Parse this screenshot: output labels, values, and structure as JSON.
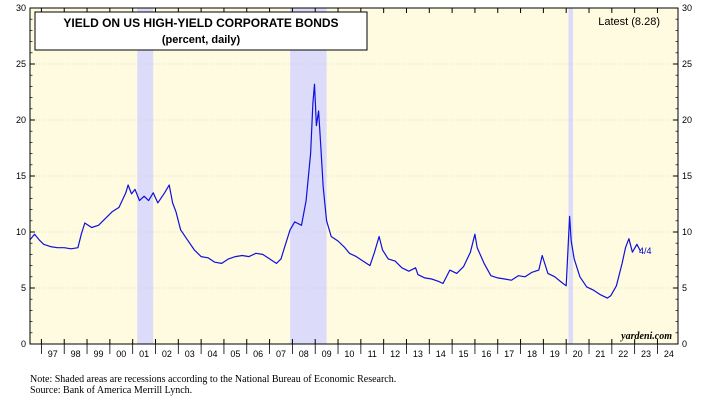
{
  "chart_data": {
    "type": "line",
    "title": "YIELD ON US HIGH-YIELD CORPORATE BONDS",
    "subtitle": "(percent, daily)",
    "latest_label": "Latest (8.28)",
    "end_annotation": "4/4",
    "watermark": "yardeni.com",
    "ylim": [
      0,
      30
    ],
    "y_ticks": [
      "0",
      "5",
      "10",
      "15",
      "20",
      "25",
      "30"
    ],
    "x_range": [
      1996.5,
      2024.9
    ],
    "x_tick_labels": [
      "97",
      "98",
      "99",
      "00",
      "01",
      "02",
      "03",
      "04",
      "05",
      "06",
      "07",
      "08",
      "09",
      "10",
      "11",
      "12",
      "13",
      "14",
      "15",
      "16",
      "17",
      "18",
      "19",
      "20",
      "21",
      "22",
      "23",
      "24"
    ],
    "recessions": [
      [
        2001.2,
        2001.9
      ],
      [
        2007.9,
        2009.5
      ],
      [
        2020.1,
        2020.3
      ]
    ],
    "series": [
      {
        "line_color": "#1010dd",
        "x": [
          1996.5,
          1996.7,
          1996.9,
          1997.1,
          1997.4,
          1997.7,
          1998.0,
          1998.3,
          1998.6,
          1998.75,
          1998.9,
          1999.2,
          1999.5,
          1999.8,
          2000.1,
          2000.4,
          2000.7,
          2000.8,
          2000.95,
          2001.1,
          2001.3,
          2001.5,
          2001.7,
          2001.9,
          2002.1,
          2002.4,
          2002.6,
          2002.75,
          2002.9,
          2003.1,
          2003.4,
          2003.7,
          2004.0,
          2004.3,
          2004.6,
          2004.9,
          2005.2,
          2005.5,
          2005.8,
          2006.1,
          2006.4,
          2006.7,
          2007.0,
          2007.3,
          2007.5,
          2007.7,
          2007.9,
          2008.1,
          2008.4,
          2008.6,
          2008.8,
          2008.9,
          2008.97,
          2009.05,
          2009.15,
          2009.25,
          2009.35,
          2009.5,
          2009.7,
          2010.0,
          2010.3,
          2010.5,
          2010.8,
          2011.1,
          2011.4,
          2011.6,
          2011.8,
          2011.95,
          2012.2,
          2012.5,
          2012.8,
          2013.1,
          2013.4,
          2013.5,
          2013.8,
          2014.1,
          2014.4,
          2014.6,
          2014.9,
          2015.2,
          2015.5,
          2015.8,
          2016.0,
          2016.1,
          2016.4,
          2016.7,
          2017.0,
          2017.3,
          2017.6,
          2017.9,
          2018.2,
          2018.5,
          2018.8,
          2018.95,
          2019.2,
          2019.5,
          2019.8,
          2020.0,
          2020.15,
          2020.22,
          2020.35,
          2020.6,
          2020.9,
          2021.2,
          2021.5,
          2021.8,
          2021.95,
          2022.2,
          2022.45,
          2022.6,
          2022.75,
          2022.9,
          2023.1,
          2023.25
        ],
        "y": [
          9.3,
          9.8,
          9.3,
          8.9,
          8.7,
          8.6,
          8.6,
          8.5,
          8.6,
          9.8,
          10.8,
          10.4,
          10.6,
          11.2,
          11.8,
          12.2,
          13.5,
          14.2,
          13.4,
          13.8,
          12.8,
          13.2,
          12.8,
          13.5,
          12.6,
          13.5,
          14.2,
          12.6,
          11.8,
          10.2,
          9.3,
          8.4,
          7.8,
          7.7,
          7.3,
          7.2,
          7.6,
          7.8,
          7.9,
          7.8,
          8.1,
          8.0,
          7.6,
          7.2,
          7.6,
          8.9,
          10.2,
          10.9,
          10.6,
          12.8,
          17.0,
          21.5,
          23.2,
          19.5,
          20.8,
          17.5,
          14.0,
          11.0,
          9.6,
          9.2,
          8.6,
          8.1,
          7.8,
          7.4,
          7.0,
          8.2,
          9.6,
          8.4,
          7.6,
          7.4,
          6.8,
          6.5,
          6.8,
          6.2,
          5.9,
          5.8,
          5.6,
          5.4,
          6.6,
          6.3,
          6.9,
          8.2,
          9.8,
          8.6,
          7.2,
          6.1,
          5.9,
          5.8,
          5.7,
          6.1,
          6.0,
          6.4,
          6.6,
          7.9,
          6.3,
          6.0,
          5.5,
          5.2,
          11.4,
          9.2,
          7.6,
          6.0,
          5.1,
          4.8,
          4.4,
          4.1,
          4.3,
          5.2,
          7.2,
          8.6,
          9.4,
          8.2,
          8.9,
          8.3
        ]
      }
    ]
  },
  "footnotes": {
    "line1": "Note: Shaded areas are recessions according to the National Bureau of Economic Research.",
    "line2": "Source: Bank of America Merrill Lynch."
  }
}
